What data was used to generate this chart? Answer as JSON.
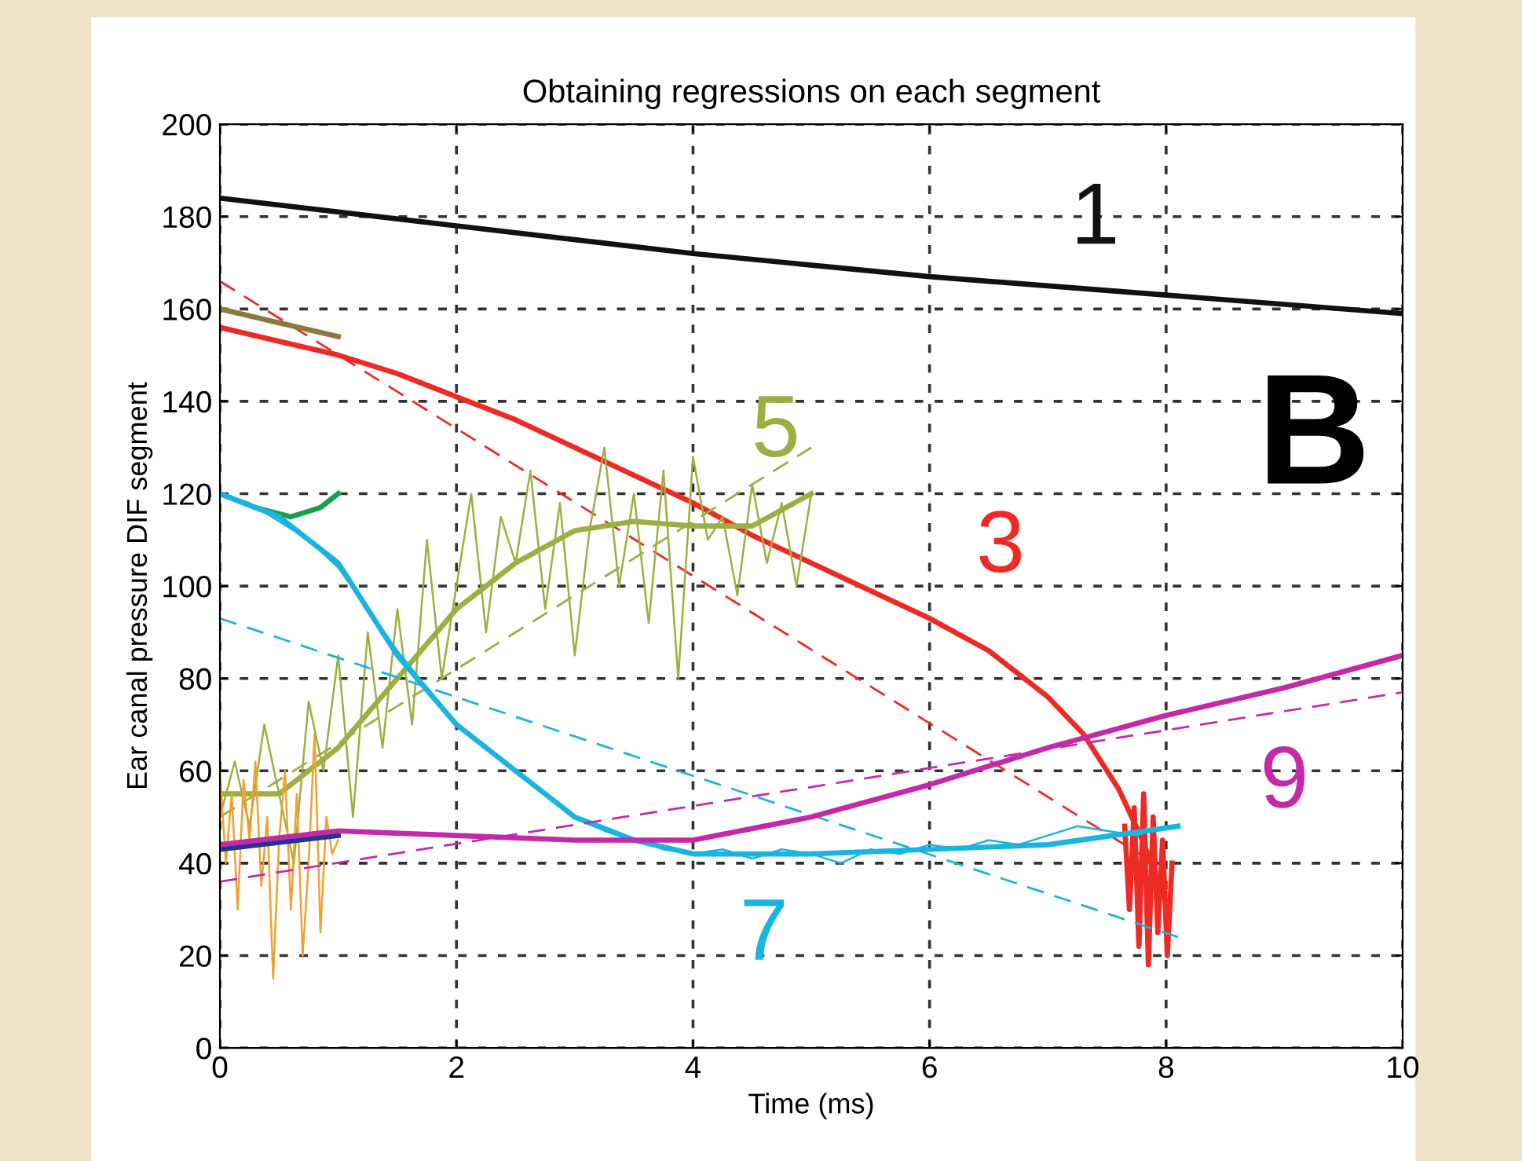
{
  "chart_data": {
    "type": "line",
    "title": "Obtaining regressions on each segment",
    "xlabel": "Time (ms)",
    "ylabel": "Ear canal pressure DIF segment",
    "xlim": [
      0,
      10
    ],
    "xticks": [
      0,
      2,
      4,
      6,
      8,
      10
    ],
    "ylim": [
      0,
      200
    ],
    "yticks": [
      0,
      20,
      40,
      60,
      80,
      100,
      120,
      140,
      160,
      180,
      200
    ],
    "grid": true,
    "series": [
      {
        "name": "1",
        "color": "#111111",
        "x": [
          0,
          2,
          4,
          6,
          8,
          10
        ],
        "values": [
          184,
          178,
          172,
          167,
          163,
          159
        ]
      },
      {
        "name": "3",
        "color": "#ee2a24",
        "x": [
          0,
          0.5,
          1,
          1.5,
          2,
          2.5,
          3,
          3.5,
          4,
          4.5,
          5,
          5.5,
          6,
          6.5,
          7,
          7.3,
          7.6,
          7.8,
          7.9
        ],
        "values": [
          156,
          153,
          150,
          146,
          141,
          136,
          130,
          124,
          118,
          111,
          105,
          99,
          93,
          86,
          76,
          68,
          56,
          45,
          38
        ]
      },
      {
        "color": "#ee2a24",
        "line_style": "dashed",
        "x": [
          0,
          7.9
        ],
        "values": [
          166,
          40
        ]
      },
      {
        "color": "#ee2a24",
        "x": [
          7.65,
          7.69,
          7.73,
          7.77,
          7.81,
          7.85,
          7.89,
          7.93,
          7.97,
          8.01,
          8.05
        ],
        "values": [
          48,
          30,
          52,
          22,
          55,
          18,
          50,
          25,
          45,
          20,
          40
        ]
      },
      {
        "color": "#8c7a3c",
        "x": [
          0,
          0.5,
          1
        ],
        "values": [
          160,
          157,
          154
        ]
      },
      {
        "color": "#1aa04a",
        "x": [
          0,
          0.3,
          0.6,
          0.85,
          1
        ],
        "values": [
          120,
          117,
          115,
          117,
          120
        ]
      },
      {
        "color": "#9bb040",
        "x": [
          0,
          0.125,
          0.25,
          0.375,
          0.5,
          0.625,
          0.75,
          0.875,
          1,
          1.125,
          1.25,
          1.375,
          1.5,
          1.625,
          1.75,
          1.875,
          2,
          2.125,
          2.25,
          2.375,
          2.5,
          2.625,
          2.75,
          2.875,
          3,
          3.125,
          3.25,
          3.375,
          3.5,
          3.625,
          3.75,
          3.875,
          4,
          4.125,
          4.25,
          4.375,
          4.5,
          4.625,
          4.75,
          4.875,
          5
        ],
        "values": [
          50,
          62,
          48,
          70,
          55,
          40,
          75,
          60,
          85,
          50,
          90,
          65,
          95,
          70,
          110,
          80,
          100,
          120,
          90,
          115,
          105,
          125,
          95,
          118,
          85,
          112,
          130,
          100,
          120,
          92,
          125,
          80,
          128,
          110,
          115,
          98,
          122,
          105,
          118,
          100,
          120
        ]
      },
      {
        "name": "5",
        "color": "#9bb040",
        "x": [
          0,
          0.5,
          1,
          1.5,
          2,
          2.5,
          3,
          3.5,
          4,
          4.5,
          5
        ],
        "values": [
          55,
          55,
          65,
          80,
          95,
          105,
          112,
          114,
          113,
          113,
          120
        ]
      },
      {
        "color": "#9bb040",
        "line_style": "dashed",
        "x": [
          0,
          5
        ],
        "values": [
          50,
          130
        ]
      },
      {
        "color": "#f0a030",
        "x": [
          0,
          0.05,
          0.1,
          0.15,
          0.2,
          0.25,
          0.3,
          0.35,
          0.4,
          0.45,
          0.5,
          0.55,
          0.6,
          0.65,
          0.7,
          0.75,
          0.8,
          0.85,
          0.9,
          0.95,
          1
        ],
        "values": [
          60,
          40,
          55,
          30,
          58,
          45,
          62,
          35,
          50,
          15,
          45,
          60,
          30,
          55,
          20,
          40,
          68,
          25,
          50,
          42,
          45
        ]
      },
      {
        "color": "#1ab4e0",
        "x": [
          0,
          0.25,
          0.5,
          0.75,
          1,
          1.25,
          1.5,
          1.75,
          2,
          2.25,
          2.5,
          2.75,
          3,
          3.25,
          3.5,
          3.75,
          4,
          4.25,
          4.5,
          4.75,
          5,
          5.25,
          5.5,
          5.75,
          6,
          6.25,
          6.5,
          6.75,
          7,
          7.25,
          7.5,
          7.75,
          8
        ],
        "values": [
          120,
          118,
          114,
          110,
          104,
          95,
          86,
          78,
          70,
          65,
          60,
          55,
          50,
          47,
          45,
          43,
          42,
          43,
          41,
          43,
          42,
          40,
          43,
          42,
          44,
          43,
          45,
          44,
          46,
          48,
          47,
          46,
          48
        ]
      },
      {
        "name": "7",
        "color": "#1ab4e0",
        "x": [
          0,
          0.5,
          1,
          1.5,
          2,
          2.5,
          3,
          3.5,
          4,
          5,
          6,
          7,
          8.1
        ],
        "values": [
          120,
          115,
          105,
          85,
          70,
          60,
          50,
          45,
          42,
          42,
          43,
          44,
          48
        ]
      },
      {
        "color": "#1ab4e0",
        "line_style": "dashed",
        "x": [
          0,
          8.1
        ],
        "values": [
          93,
          24
        ]
      },
      {
        "color": "#1f3590",
        "x": [
          0,
          1
        ],
        "values": [
          43,
          46
        ]
      },
      {
        "name": "9",
        "color": "#c42aa8",
        "x": [
          0,
          1,
          2,
          3,
          4,
          5,
          6,
          7,
          8,
          9,
          10
        ],
        "values": [
          44,
          47,
          46,
          45,
          45,
          50,
          57,
          65,
          72,
          78,
          85
        ]
      },
      {
        "color": "#c42aa8",
        "line_style": "dashed",
        "x": [
          0,
          10
        ],
        "values": [
          36,
          77
        ]
      }
    ],
    "annotations": [
      "B"
    ]
  }
}
